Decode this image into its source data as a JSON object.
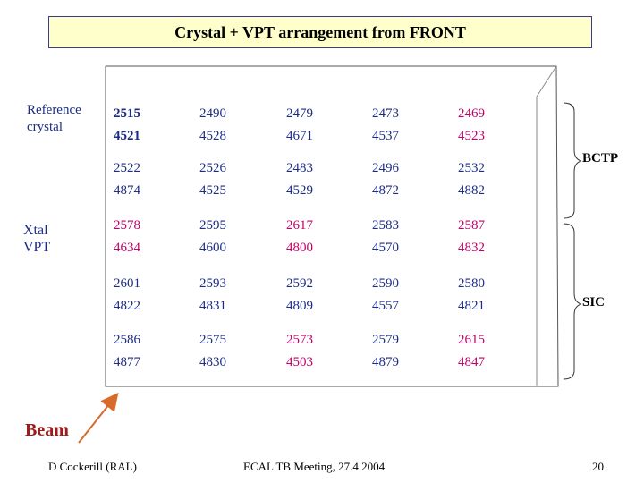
{
  "title": "Crystal + VPT arrangement from FRONT",
  "labels": {
    "reference_crystal": [
      "Reference",
      "crystal"
    ],
    "xtal_vpt": [
      "Xtal",
      "VPT"
    ],
    "beam": "Beam",
    "bctp": "BCTP",
    "sic": "SIC"
  },
  "colors": {
    "reference": "#1c2c86",
    "normal": "#1c2c86",
    "highlight": "#c0006b",
    "beam": "#a11a1a",
    "title_bg": "#ffffcc"
  },
  "grid": [
    [
      {
        "xtal": "2515",
        "vpt": "4521",
        "style": "reference"
      },
      {
        "xtal": "2490",
        "vpt": "4528",
        "style": "normal"
      },
      {
        "xtal": "2479",
        "vpt": "4671",
        "style": "normal"
      },
      {
        "xtal": "2473",
        "vpt": "4537",
        "style": "normal"
      },
      {
        "xtal": "2469",
        "vpt": "4523",
        "style": "highlight"
      }
    ],
    [
      {
        "xtal": "2522",
        "vpt": "4874",
        "style": "normal"
      },
      {
        "xtal": "2526",
        "vpt": "4525",
        "style": "normal"
      },
      {
        "xtal": "2483",
        "vpt": "4529",
        "style": "normal"
      },
      {
        "xtal": "2496",
        "vpt": "4872",
        "style": "normal"
      },
      {
        "xtal": "2532",
        "vpt": "4882",
        "style": "normal"
      }
    ],
    [
      {
        "xtal": "2578",
        "vpt": "4634",
        "style": "highlight"
      },
      {
        "xtal": "2595",
        "vpt": "4600",
        "style": "normal"
      },
      {
        "xtal": "2617",
        "vpt": "4800",
        "style": "highlight"
      },
      {
        "xtal": "2583",
        "vpt": "4570",
        "style": "normal"
      },
      {
        "xtal": "2587",
        "vpt": "4832",
        "style": "highlight"
      }
    ],
    [
      {
        "xtal": "2601",
        "vpt": "4822",
        "style": "normal"
      },
      {
        "xtal": "2593",
        "vpt": "4831",
        "style": "normal"
      },
      {
        "xtal": "2592",
        "vpt": "4809",
        "style": "normal"
      },
      {
        "xtal": "2590",
        "vpt": "4557",
        "style": "normal"
      },
      {
        "xtal": "2580",
        "vpt": "4821",
        "style": "normal"
      }
    ],
    [
      {
        "xtal": "2586",
        "vpt": "4877",
        "style": "normal"
      },
      {
        "xtal": "2575",
        "vpt": "4830",
        "style": "normal"
      },
      {
        "xtal": "2573",
        "vpt": "4503",
        "style": "highlight"
      },
      {
        "xtal": "2579",
        "vpt": "4879",
        "style": "normal"
      },
      {
        "xtal": "2615",
        "vpt": "4847",
        "style": "highlight"
      }
    ]
  ],
  "footer": {
    "left": "D Cockerill (RAL)",
    "center": "ECAL TB Meeting, 27.4.2004",
    "right": "20"
  }
}
